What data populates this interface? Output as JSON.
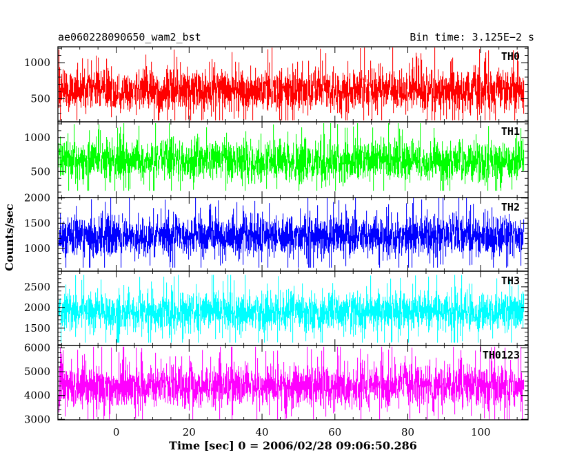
{
  "header": {
    "left_title": "ae060228090650_wam2_bst",
    "right_title": "Bin time: 3.125E−2 s"
  },
  "chart_data": {
    "type": "line",
    "title": "ae060228090650_wam2_bst",
    "subtitle": "Bin time: 3.125E−2 s",
    "xlabel": "Time [sec] 0 = 2006/02/28 09:06:50.286",
    "ylabel": "Counts/sec",
    "xlim": [
      -16,
      113
    ],
    "x_data_range": [
      -15.7,
      111.9
    ],
    "x_ticks": [
      0,
      20,
      40,
      60,
      80,
      100
    ],
    "x_tick_labels": [
      "0",
      "20",
      "40",
      "60",
      "80",
      "100"
    ],
    "grid": false,
    "series": [
      {
        "name": "TH0",
        "color": "#ff0000",
        "ylim": [
          180,
          1220
        ],
        "y_ticks": [
          500,
          1000
        ],
        "y_tick_labels": [
          "500",
          "1000"
        ],
        "mean": 620,
        "low": 200,
        "high": 1210
      },
      {
        "name": "TH1",
        "color": "#00ff00",
        "ylim": [
          120,
          1230
        ],
        "y_ticks": [
          500,
          1000
        ],
        "y_tick_labels": [
          "500",
          "1000"
        ],
        "mean": 660,
        "low": 220,
        "high": 1210
      },
      {
        "name": "TH2",
        "color": "#0000ff",
        "ylim": [
          550,
          2010
        ],
        "y_ticks": [
          1000,
          1500,
          2000
        ],
        "y_tick_labels": [
          "1000",
          "1500",
          "2000"
        ],
        "mean": 1250,
        "low": 620,
        "high": 2000
      },
      {
        "name": "TH3",
        "color": "#00ffff",
        "ylim": [
          1080,
          2880
        ],
        "y_ticks": [
          1500,
          2000,
          2500
        ],
        "y_tick_labels": [
          "1500",
          "2000",
          "2500"
        ],
        "mean": 1900,
        "low": 1150,
        "high": 2790
      },
      {
        "name": "TH0123",
        "color": "#ff00ff",
        "ylim": [
          2980,
          6100
        ],
        "y_ticks": [
          3000,
          4000,
          5000,
          6000
        ],
        "y_tick_labels": [
          "3000",
          "4000",
          "5000",
          "6000"
        ],
        "mean": 4400,
        "low": 3000,
        "high": 6050
      }
    ]
  }
}
